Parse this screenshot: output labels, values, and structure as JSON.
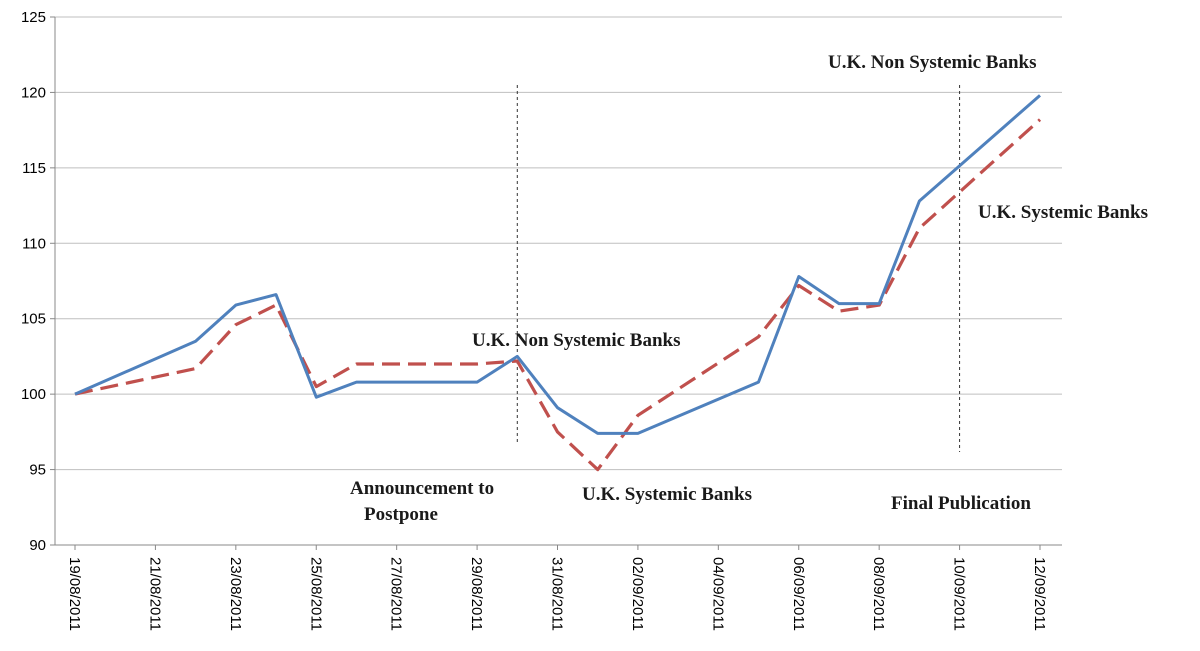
{
  "chart_data": {
    "type": "line",
    "title": "",
    "xlabel": "",
    "ylabel": "",
    "ylim": [
      90,
      125
    ],
    "yticks": [
      90,
      95,
      100,
      105,
      110,
      115,
      120,
      125
    ],
    "grid": "horizontal",
    "x_tick_labels": [
      "19/08/2011",
      "21/08/2011",
      "23/08/2011",
      "25/08/2011",
      "27/08/2011",
      "29/08/2011",
      "31/08/2011",
      "02/09/2011",
      "04/09/2011",
      "06/09/2011",
      "08/09/2011",
      "10/09/2011",
      "12/09/2011"
    ],
    "x": [
      "2011-08-19",
      "2011-08-22",
      "2011-08-23",
      "2011-08-24",
      "2011-08-25",
      "2011-08-26",
      "2011-08-29",
      "2011-08-30",
      "2011-08-31",
      "2011-09-01",
      "2011-09-02",
      "2011-09-05",
      "2011-09-06",
      "2011-09-07",
      "2011-09-08",
      "2011-09-09",
      "2011-09-12"
    ],
    "series": [
      {
        "name": "U.K. Non Systemic Banks",
        "color": "#4f81bd",
        "style": "solid",
        "values": [
          100,
          103.5,
          105.9,
          106.6,
          99.8,
          100.8,
          100.8,
          102.5,
          99.1,
          97.4,
          97.4,
          100.8,
          107.8,
          106.0,
          106.0,
          112.8,
          119.8
        ]
      },
      {
        "name": "U.K. Systemic Banks",
        "color": "#c0504d",
        "style": "dashed",
        "values": [
          100,
          101.7,
          104.6,
          105.9,
          100.5,
          102.0,
          102.0,
          102.2,
          97.5,
          95.0,
          98.6,
          103.8,
          107.2,
          105.5,
          105.9,
          111.0,
          118.2
        ]
      }
    ],
    "event_lines": [
      {
        "date": "2011-08-30",
        "label": "Announcement to Postpone",
        "label_lines": [
          "Announcement to",
          "Postpone"
        ]
      },
      {
        "date": "2011-09-10",
        "label": "Final Publication"
      }
    ],
    "annotations": [
      {
        "text": "U.K. Non Systemic Banks",
        "near": "2011-08-30"
      },
      {
        "text": "U.K. Systemic Banks",
        "near": "2011-09-01"
      },
      {
        "text": "U.K. Non Systemic Banks",
        "near": "2011-09-10"
      },
      {
        "text": "U.K. Systemic Banks",
        "near": "2011-09-12"
      }
    ]
  }
}
